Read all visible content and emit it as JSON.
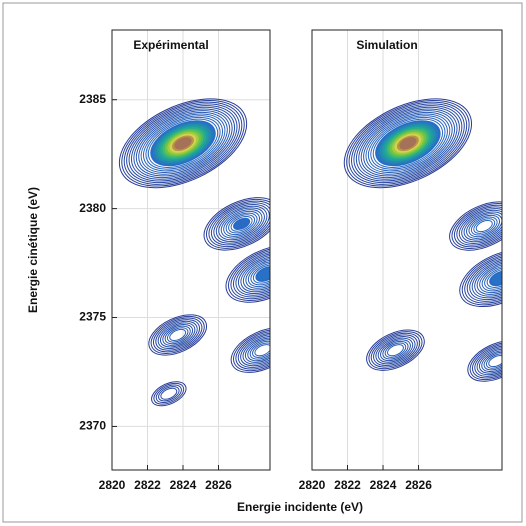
{
  "chart_data": [
    {
      "type": "contour",
      "title": "Expérimental",
      "x_label": "Energie incidente (eV)",
      "y_label": "Energie cinétique (eV)",
      "xlim": [
        2820,
        2828.9
      ],
      "xticks": [
        2820,
        2822,
        2824,
        2826
      ],
      "ylim": [
        2368,
        2388.2
      ],
      "yticks": [
        2370,
        2375,
        2380,
        2385
      ],
      "grid": true,
      "peaks": {
        "x": [
          2824,
          2827.3,
          2828.7,
          2823.7,
          2828.5,
          2823.2
        ],
        "y": [
          2383,
          2379.3,
          2377,
          2374.2,
          2373.5,
          2371.5
        ],
        "z": [
          1.0,
          0.55,
          0.6,
          0.4,
          0.45,
          0.2
        ]
      }
    },
    {
      "type": "contour",
      "title": "Simulation",
      "xlim": [
        2820,
        2830.7
      ],
      "xticks": [
        2820,
        2822,
        2824,
        2826
      ],
      "ylim": [
        2368,
        2388.2
      ],
      "grid": true,
      "peaks": {
        "x": [
          2825.4,
          2829.7,
          2830.6,
          2824.7,
          2830.4
        ],
        "y": [
          2383,
          2379.2,
          2376.8,
          2373.5,
          2373
        ],
        "z": [
          1.0,
          0.5,
          0.6,
          0.4,
          0.4
        ]
      }
    }
  ]
}
